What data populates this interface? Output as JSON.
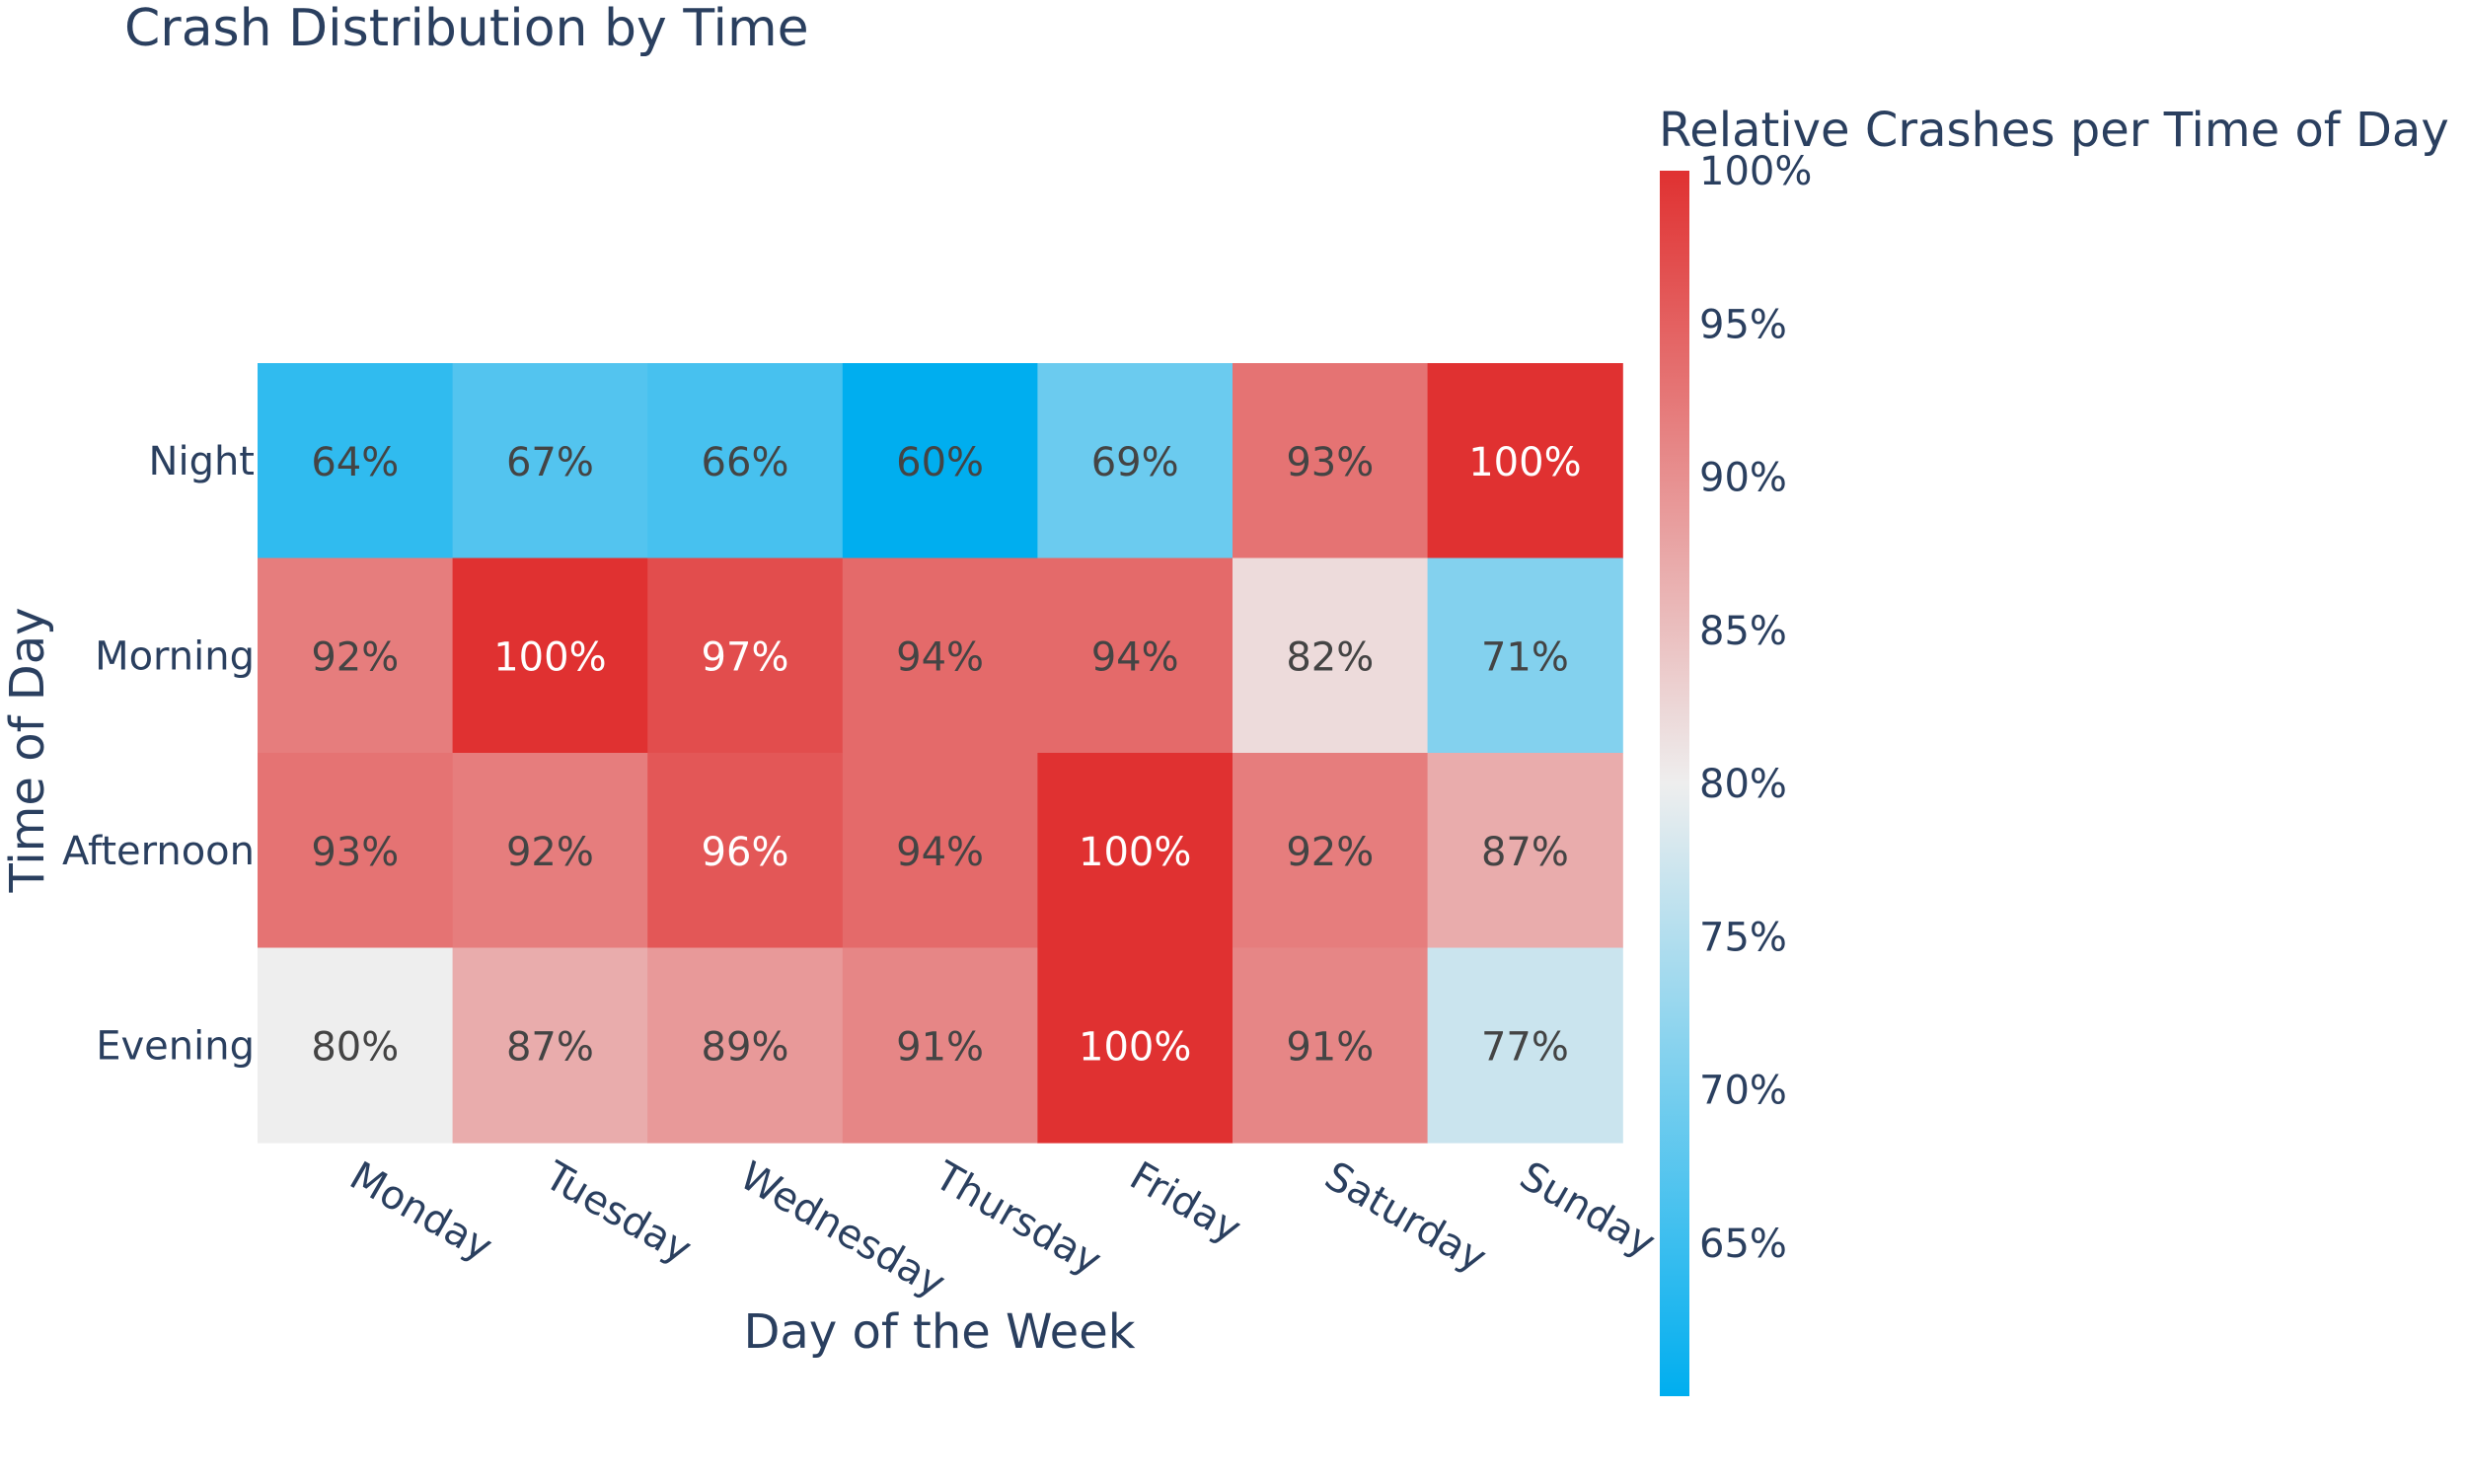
{
  "chart_data": {
    "type": "heatmap",
    "title": "Crash Distribution by Time",
    "xlabel": "Day of the Week",
    "ylabel": "Time of Day",
    "x_categories": [
      "Monday",
      "Tuesday",
      "Wednesday",
      "Thursday",
      "Friday",
      "Saturday",
      "Sunday"
    ],
    "y_categories": [
      "Night",
      "Morning",
      "Afternoon",
      "Evening"
    ],
    "values": [
      [
        64,
        67,
        66,
        60,
        69,
        93,
        100
      ],
      [
        92,
        100,
        97,
        94,
        94,
        82,
        71
      ],
      [
        93,
        92,
        96,
        94,
        100,
        92,
        87
      ],
      [
        80,
        87,
        89,
        91,
        100,
        91,
        77
      ]
    ],
    "value_suffix": "%",
    "colorbar": {
      "title": "Relative Crashes per Time of Day",
      "min": 60,
      "max": 100,
      "ticks": [
        65,
        70,
        75,
        80,
        85,
        90,
        95,
        100
      ],
      "tick_suffix": "%",
      "colorscale": [
        [
          0.0,
          "#00AEEF"
        ],
        [
          0.5,
          "#EEEEEE"
        ],
        [
          1.0,
          "#E03131"
        ]
      ]
    },
    "text_color_dark": "#444444",
    "text_color_light": "#ffffff",
    "label_color": "#2A3F5F"
  }
}
